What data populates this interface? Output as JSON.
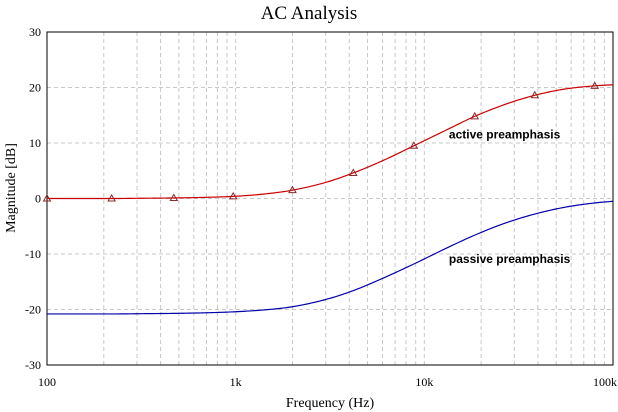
{
  "chart_data": {
    "type": "line",
    "title": "AC Analysis",
    "xlabel": "Frequency (Hz)",
    "ylabel": "Magnitude [dB]",
    "x_scale": "log",
    "xlim": [
      100,
      100000
    ],
    "ylim": [
      -30,
      30
    ],
    "x_ticks": [
      {
        "value": 100,
        "label": "100"
      },
      {
        "value": 1000,
        "label": "1k"
      },
      {
        "value": 10000,
        "label": "10k"
      },
      {
        "value": 100000,
        "label": "100k"
      }
    ],
    "y_ticks": [
      {
        "value": 30,
        "label": "30"
      },
      {
        "value": 20,
        "label": "20"
      },
      {
        "value": 10,
        "label": "10"
      },
      {
        "value": 0,
        "label": "0"
      },
      {
        "value": -10,
        "label": "-10"
      },
      {
        "value": -20,
        "label": "-20"
      },
      {
        "value": -30,
        "label": "-30"
      }
    ],
    "grid": true,
    "series": [
      {
        "name": "active preamphasis",
        "color": "#cc0000",
        "marker": "triangle",
        "x": [
          100,
          150,
          220,
          330,
          470,
          680,
          1000,
          1500,
          2000,
          3000,
          4200,
          6000,
          8800,
          13000,
          18500,
          27000,
          38500,
          55000,
          80000,
          100000
        ],
        "y": [
          0,
          0,
          0,
          0.05,
          0.1,
          0.2,
          0.4,
          0.9,
          1.5,
          2.9,
          4.6,
          6.8,
          9.5,
          12.3,
          14.8,
          17.0,
          18.6,
          19.7,
          20.3,
          20.5
        ],
        "markers_x": [
          100,
          220,
          470,
          970,
          2000,
          4200,
          8800,
          18500,
          38500,
          80000
        ]
      },
      {
        "name": "passive preamphasis",
        "color": "#0000aa",
        "marker": "none",
        "x": [
          100,
          150,
          220,
          330,
          470,
          680,
          1000,
          1500,
          2000,
          3000,
          4200,
          6000,
          8800,
          13000,
          18500,
          27000,
          38500,
          55000,
          80000,
          100000
        ],
        "y": [
          -20.8,
          -20.8,
          -20.8,
          -20.75,
          -20.7,
          -20.6,
          -20.4,
          -20.0,
          -19.5,
          -18.2,
          -16.6,
          -14.4,
          -11.8,
          -9.0,
          -6.6,
          -4.4,
          -2.8,
          -1.6,
          -0.8,
          -0.5
        ]
      }
    ],
    "annotations": [
      {
        "text": "active preamphasis",
        "x": 14000,
        "y": 11.5
      },
      {
        "text": "passive preamphasis",
        "x": 14000,
        "y": -10.9
      }
    ]
  }
}
